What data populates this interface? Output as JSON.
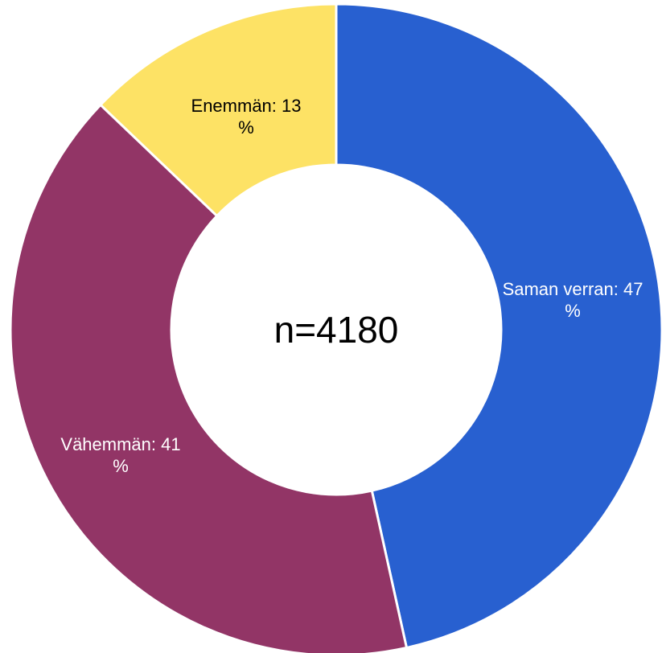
{
  "chart_data": {
    "type": "donut",
    "categories": [
      "Saman verran: 47 %",
      "Vähemmän: 41 %",
      "Enemmän: 13 %"
    ],
    "values": [
      47,
      41,
      13
    ],
    "colors": [
      "#2860d0",
      "#923566",
      "#fde265"
    ],
    "label_colors": [
      "#ffffff",
      "#ffffff",
      "#000000"
    ],
    "center_label": "n=4180"
  }
}
